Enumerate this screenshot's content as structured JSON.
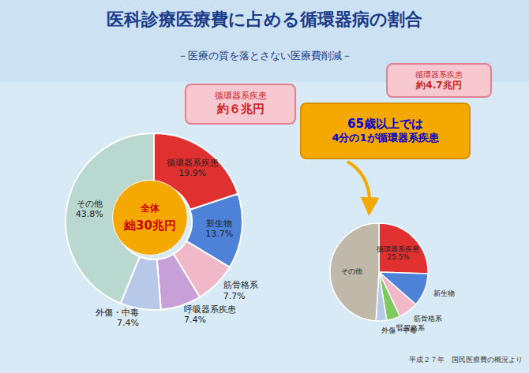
{
  "chart_data": [
    {
      "type": "pie",
      "title": "医科診療医療費に占める循環器病の割合",
      "subtitle": "－医療の質を落とさない医療費削減－",
      "background": "#d8eaf5",
      "header_background": "#cce2f2",
      "title_color": "#1a3a8a",
      "categories": [
        "循環器系疾患",
        "新生物",
        "筋骨格系",
        "呼吸器系疾患",
        "外傷・中毒",
        "その他"
      ],
      "values": [
        19.9,
        13.7,
        7.7,
        7.4,
        7.4,
        43.8
      ],
      "value_labels": [
        "19.9%",
        "13.7%",
        "7.7%",
        "7.4%",
        "7.4%",
        "43.8%"
      ],
      "colors": [
        "#e03030",
        "#4d82d8",
        "#f0b8c8",
        "#c8a0d8",
        "#b8c8e8",
        "#b8d8d0"
      ],
      "center": {
        "text": [
          "全体",
          "絀30兆円"
        ],
        "color": "#f5a800",
        "text_color": "#cc0000"
      },
      "annotations": [
        {
          "text": [
            "循環器系疾患",
            "約６兆円"
          ],
          "color": "#cc2222",
          "background": "#f8c8d0",
          "border": "#e08090"
        }
      ]
    },
    {
      "type": "pie",
      "categories": [
        "循環器系疾患",
        "新生物",
        "筋骨格系",
        "腎尿路系",
        "外傷・中毒",
        "その他"
      ],
      "values": [
        25.5,
        11.0,
        6.5,
        4.5,
        3.5,
        49.0
      ],
      "value_labels": [
        "25.5%",
        null,
        null,
        null,
        null,
        null
      ],
      "colors": [
        "#e03030",
        "#4d82d8",
        "#f0b8c8",
        "#80c860",
        "#b8c8e8",
        "#c0b8a8"
      ],
      "annotations": [
        {
          "text": [
            "65歳以上では",
            "4分の1が循環器系疾患"
          ],
          "color": "#0000cc",
          "background": "#f5a800",
          "border": "#d89000"
        },
        {
          "text": [
            "循環器系疾患",
            "約4.7兆円"
          ],
          "color": "#cc2222",
          "background": "#f8c8d0",
          "border": "#e08090"
        }
      ],
      "source": "平成２７年　国民医療費の概況より"
    }
  ]
}
